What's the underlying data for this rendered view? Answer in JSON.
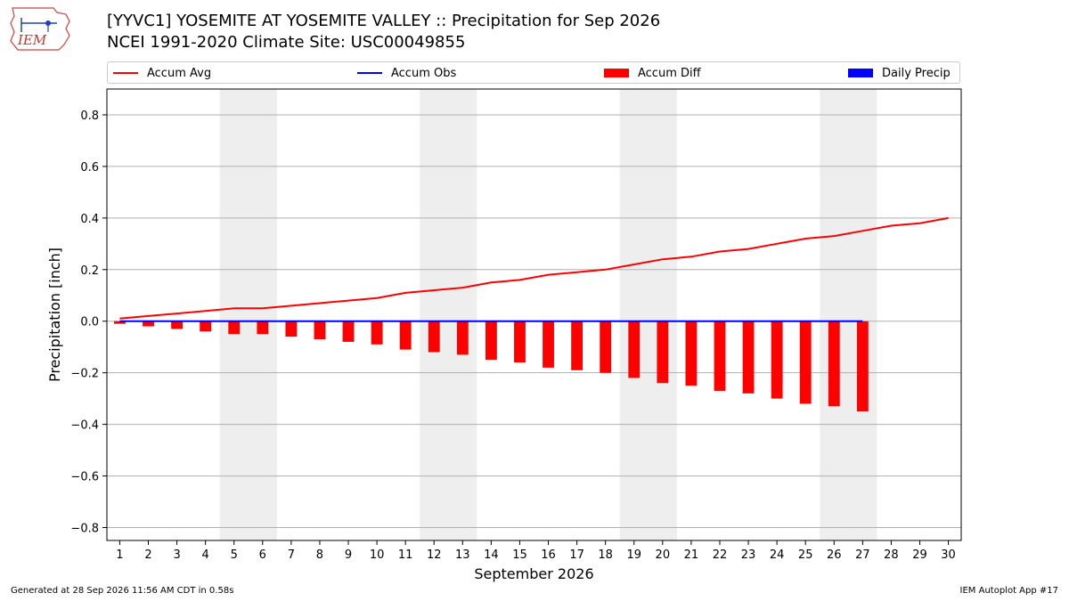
{
  "header": {
    "title_line1": "[YYVC1] YOSEMITE AT YOSEMITE VALLEY :: Precipitation for Sep 2026",
    "title_line2": "NCEI 1991-2020 Climate Site: USC00049855",
    "logo_text": "IEM"
  },
  "legend": {
    "items": [
      {
        "label": "Accum Avg",
        "color": "#ff0000",
        "kind": "line"
      },
      {
        "label": "Accum Obs",
        "color": "#0000ff",
        "kind": "line"
      },
      {
        "label": "Accum Diff",
        "color": "#ff0000",
        "kind": "box"
      },
      {
        "label": "Daily Precip",
        "color": "#0000ff",
        "kind": "box"
      }
    ]
  },
  "footer": {
    "generated": "Generated at 28 Sep 2026 11:56 AM CDT in 0.58s",
    "app": "IEM Autoplot App #17"
  },
  "chart_data": {
    "type": "bar",
    "xlabel": "September 2026",
    "ylabel": "Precipitation [inch]",
    "ylim": [
      -0.85,
      0.9
    ],
    "xlim": [
      0.55,
      30.45
    ],
    "yticks": [
      -0.8,
      -0.6,
      -0.4,
      -0.2,
      0.0,
      0.2,
      0.4,
      0.6,
      0.8
    ],
    "ytick_labels": [
      "−0.8",
      "−0.6",
      "−0.4",
      "−0.2",
      "0.0",
      "0.2",
      "0.4",
      "0.6",
      "0.8"
    ],
    "grid": "horizontal",
    "weekend_shading": [
      [
        4.5,
        6.5
      ],
      [
        11.5,
        13.5
      ],
      [
        18.5,
        20.5
      ],
      [
        25.5,
        27.5
      ]
    ],
    "days": [
      1,
      2,
      3,
      4,
      5,
      6,
      7,
      8,
      9,
      10,
      11,
      12,
      13,
      14,
      15,
      16,
      17,
      18,
      19,
      20,
      21,
      22,
      23,
      24,
      25,
      26,
      27,
      28,
      29,
      30
    ],
    "series": [
      {
        "name": "Accum Avg",
        "type": "line",
        "color": "#ff0000",
        "x": [
          1,
          2,
          3,
          4,
          5,
          6,
          7,
          8,
          9,
          10,
          11,
          12,
          13,
          14,
          15,
          16,
          17,
          18,
          19,
          20,
          21,
          22,
          23,
          24,
          25,
          26,
          27,
          28,
          29,
          30
        ],
        "values": [
          0.01,
          0.02,
          0.03,
          0.04,
          0.05,
          0.05,
          0.06,
          0.07,
          0.08,
          0.09,
          0.11,
          0.12,
          0.13,
          0.15,
          0.16,
          0.18,
          0.19,
          0.2,
          0.22,
          0.24,
          0.25,
          0.27,
          0.28,
          0.3,
          0.32,
          0.33,
          0.35,
          0.37,
          0.38,
          0.4
        ]
      },
      {
        "name": "Accum Obs",
        "type": "line",
        "color": "#0000ff",
        "x": [
          1,
          2,
          3,
          4,
          5,
          6,
          7,
          8,
          9,
          10,
          11,
          12,
          13,
          14,
          15,
          16,
          17,
          18,
          19,
          20,
          21,
          22,
          23,
          24,
          25,
          26,
          27
        ],
        "values": [
          0,
          0,
          0,
          0,
          0,
          0,
          0,
          0,
          0,
          0,
          0,
          0,
          0,
          0,
          0,
          0,
          0,
          0,
          0,
          0,
          0,
          0,
          0,
          0,
          0,
          0,
          0
        ]
      },
      {
        "name": "Accum Diff",
        "type": "bar",
        "color": "#ff0000",
        "x": [
          1,
          2,
          3,
          4,
          5,
          6,
          7,
          8,
          9,
          10,
          11,
          12,
          13,
          14,
          15,
          16,
          17,
          18,
          19,
          20,
          21,
          22,
          23,
          24,
          25,
          26,
          27
        ],
        "values": [
          -0.01,
          -0.02,
          -0.03,
          -0.04,
          -0.05,
          -0.05,
          -0.06,
          -0.07,
          -0.08,
          -0.09,
          -0.11,
          -0.12,
          -0.13,
          -0.15,
          -0.16,
          -0.18,
          -0.19,
          -0.2,
          -0.22,
          -0.24,
          -0.25,
          -0.27,
          -0.28,
          -0.3,
          -0.32,
          -0.33,
          -0.35
        ]
      },
      {
        "name": "Daily Precip",
        "type": "bar",
        "color": "#0000ff",
        "x": [
          1,
          2,
          3,
          4,
          5,
          6,
          7,
          8,
          9,
          10,
          11,
          12,
          13,
          14,
          15,
          16,
          17,
          18,
          19,
          20,
          21,
          22,
          23,
          24,
          25,
          26,
          27
        ],
        "values": [
          0,
          0,
          0,
          0,
          0,
          0,
          0,
          0,
          0,
          0,
          0,
          0,
          0,
          0,
          0,
          0,
          0,
          0,
          0,
          0,
          0,
          0,
          0,
          0,
          0,
          0,
          0
        ]
      }
    ]
  }
}
